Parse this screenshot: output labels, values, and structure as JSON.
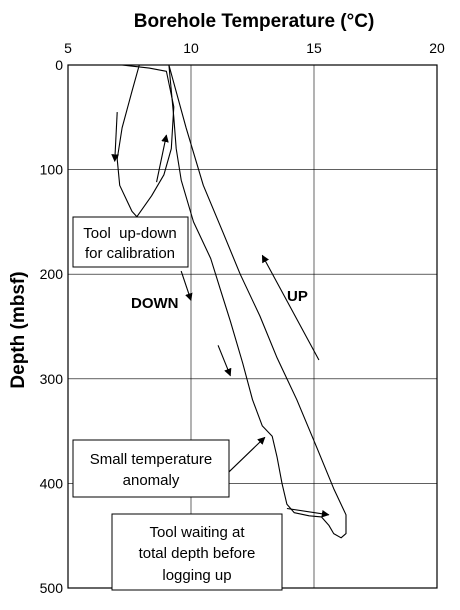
{
  "chart_data": {
    "type": "line",
    "title": "Borehole Temperature (°C)",
    "xlabel": "",
    "ylabel": "Depth (mbsf)",
    "xlim": [
      5,
      20
    ],
    "ylim": [
      0,
      500
    ],
    "y_inverted": true,
    "x_ticks": [
      5,
      10,
      15,
      20
    ],
    "y_ticks": [
      0,
      100,
      200,
      300,
      400,
      500
    ],
    "grid": true,
    "x_axis_position": "top",
    "series": [
      {
        "points": [
          [
            7.9,
            0
          ],
          [
            7.6,
            25
          ],
          [
            7.2,
            60
          ],
          [
            7.0,
            90
          ],
          [
            7.1,
            115
          ],
          [
            7.6,
            140
          ],
          [
            7.8,
            145
          ],
          [
            8.4,
            125
          ],
          [
            8.9,
            105
          ],
          [
            9.2,
            80
          ],
          [
            9.3,
            40
          ],
          [
            9.0,
            6
          ],
          [
            8.3,
            3
          ],
          [
            7.2,
            0
          ],
          [
            6.4,
            0
          ]
        ]
      },
      {
        "points": [
          [
            9.1,
            0
          ],
          [
            9.3,
            50
          ],
          [
            9.4,
            80
          ],
          [
            9.6,
            110
          ],
          [
            10.1,
            150
          ],
          [
            10.8,
            185
          ],
          [
            11.2,
            215
          ],
          [
            11.6,
            245
          ],
          [
            12.1,
            285
          ],
          [
            12.5,
            320
          ],
          [
            12.9,
            345
          ],
          [
            13.3,
            355
          ],
          [
            13.5,
            375
          ],
          [
            13.7,
            400
          ],
          [
            13.9,
            420
          ],
          [
            14.2,
            428
          ],
          [
            14.8,
            431
          ],
          [
            15.3,
            432
          ],
          [
            15.6,
            440
          ],
          [
            15.8,
            448
          ],
          [
            16.1,
            452
          ],
          [
            16.3,
            448
          ],
          [
            16.3,
            430
          ],
          [
            15.8,
            405
          ],
          [
            15.1,
            365
          ],
          [
            14.3,
            320
          ],
          [
            13.5,
            280
          ],
          [
            12.8,
            240
          ],
          [
            12.0,
            200
          ],
          [
            11.3,
            160
          ],
          [
            10.5,
            115
          ],
          [
            9.8,
            60
          ],
          [
            9.1,
            0
          ]
        ]
      }
    ],
    "arrows": [
      {
        "from": [
          7.0,
          45
        ],
        "to": [
          6.9,
          92
        ]
      },
      {
        "from": [
          8.6,
          112
        ],
        "to": [
          9.0,
          67
        ]
      },
      {
        "from": [
          9.6,
          197
        ],
        "to": [
          10.0,
          225
        ]
      },
      {
        "from": [
          11.1,
          268
        ],
        "to": [
          11.6,
          297
        ]
      },
      {
        "from": [
          15.2,
          282
        ],
        "to": [
          12.9,
          182
        ]
      },
      {
        "from": [
          11.5,
          390
        ],
        "to": [
          13.0,
          356
        ]
      },
      {
        "from": [
          13.9,
          424
        ],
        "to": [
          15.6,
          430
        ]
      }
    ],
    "annotations": [
      {
        "lines": [
          "Tool  up-down",
          "for calibration"
        ],
        "boxed": true,
        "bold": false
      },
      {
        "lines": [
          "DOWN"
        ],
        "boxed": false,
        "bold": true
      },
      {
        "lines": [
          "UP"
        ],
        "boxed": false,
        "bold": true
      },
      {
        "lines": [
          "Small temperature",
          "anomaly"
        ],
        "boxed": true,
        "bold": false
      },
      {
        "lines": [
          "Tool waiting at",
          "total depth before",
          "logging up"
        ],
        "boxed": true,
        "bold": false
      }
    ]
  }
}
